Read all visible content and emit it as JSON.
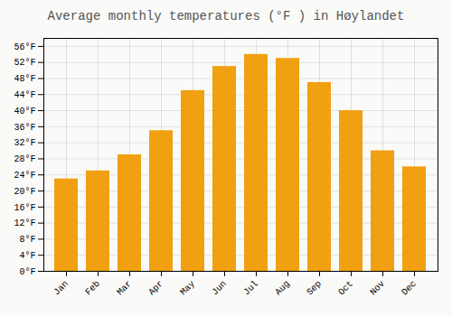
{
  "chart_data": {
    "type": "bar",
    "title": "Average monthly temperatures (°F ) in Høylandet",
    "categories": [
      "Jan",
      "Feb",
      "Mar",
      "Apr",
      "May",
      "Jun",
      "Jul",
      "Aug",
      "Sep",
      "Oct",
      "Nov",
      "Dec"
    ],
    "values": [
      23,
      25,
      29,
      35,
      45,
      51,
      54,
      53,
      47,
      40,
      30,
      26
    ],
    "color": "#F0A010",
    "ylim": [
      0,
      58
    ],
    "yticks": [
      {
        "value": 0,
        "label": "0°F"
      },
      {
        "value": 4,
        "label": "4°F"
      },
      {
        "value": 8,
        "label": "8°F"
      },
      {
        "value": 12,
        "label": "12°F"
      },
      {
        "value": 16,
        "label": "16°F"
      },
      {
        "value": 20,
        "label": "20°F"
      },
      {
        "value": 24,
        "label": "24°F"
      },
      {
        "value": 28,
        "label": "28°F"
      },
      {
        "value": 32,
        "label": "32°F"
      },
      {
        "value": 36,
        "label": "36°F"
      },
      {
        "value": 40,
        "label": "40°F"
      },
      {
        "value": 44,
        "label": "44°F"
      },
      {
        "value": 48,
        "label": "48°F"
      },
      {
        "value": 52,
        "label": "52°F"
      },
      {
        "value": 56,
        "label": "56°F"
      }
    ],
    "grid": true
  }
}
